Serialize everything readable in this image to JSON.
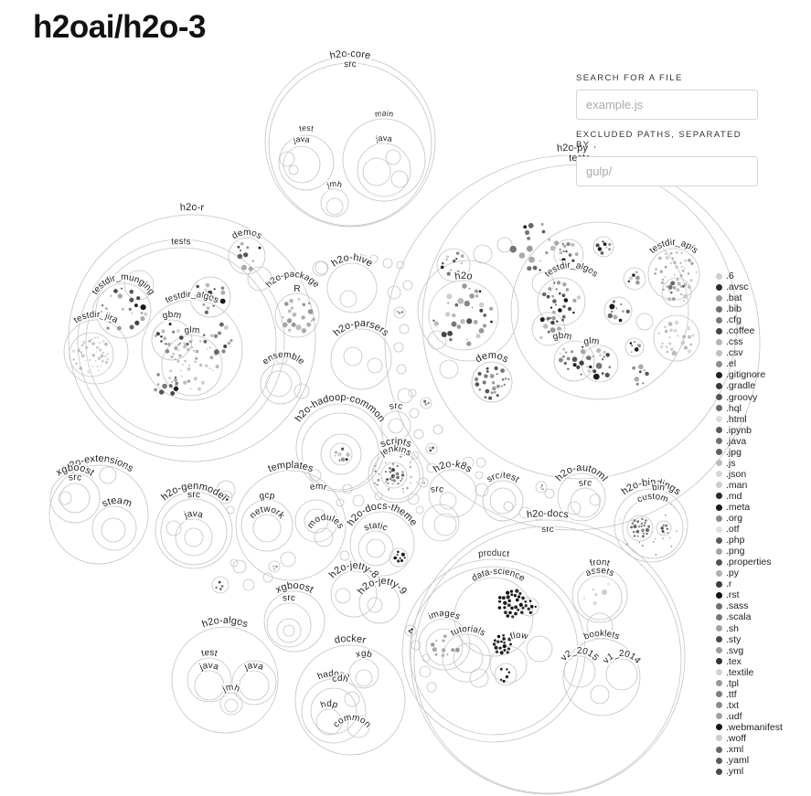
{
  "repo_title": "h2oai/h2o-3",
  "search": {
    "label": "SEARCH FOR A FILE",
    "placeholder": "example.js"
  },
  "excluded": {
    "label": "EXCLUDED PATHS, SEPARATED BY ,",
    "placeholder": "gulp/"
  },
  "folders": [
    "h2o-core",
    "src",
    "test",
    "java",
    "main",
    "java",
    "jmh",
    "h2o-py",
    "tests",
    "testdir_apis",
    "testdir_algos",
    "h2o",
    "demos",
    "gbm",
    "glm",
    "h2o-r",
    "tests",
    "demos",
    "testdir_munging",
    "testdir_algos",
    "testdir_jira",
    "gbm",
    "glm",
    "h2o-package",
    "R",
    "ensemble",
    "h2o-hive",
    "h2o-parsers",
    "h2o-hadoop-common",
    "src",
    "h2o-extensions",
    "xgboost",
    "src",
    "steam",
    "h2o-genmodel",
    "src",
    "java",
    "templates",
    "gcp",
    "network",
    "emr",
    "modules",
    "scripts",
    "jenkins",
    "h2o-k8s",
    "src/test",
    "src",
    "h2o-docs-theme",
    "static",
    "h2o-automl",
    "src",
    "h2o-bindings",
    "bin",
    "custom",
    "h2o-jetty-8",
    "h2o-jetty-9",
    "xgboost",
    "src",
    "h2o-algos",
    "test",
    "java",
    "java",
    "jmh",
    "docker",
    "xgb",
    "hadoop",
    "cdh",
    "hdp",
    "common",
    "h2o-docs",
    "src",
    "product",
    "data-science",
    "images",
    "tutorials",
    "flow",
    "front",
    "assets",
    "booklets",
    "v2_2015",
    "v1_2014"
  ],
  "legend": [
    {
      "ext": ".6",
      "color": "#cfcfcf"
    },
    {
      "ext": ".avsc",
      "color": "#2d2d2d"
    },
    {
      "ext": ".bat",
      "color": "#9a9a9a"
    },
    {
      "ext": ".bib",
      "color": "#6e6e6e"
    },
    {
      "ext": ".cfg",
      "color": "#7a7a7a"
    },
    {
      "ext": ".coffee",
      "color": "#454545"
    },
    {
      "ext": ".css",
      "color": "#b5b5b5"
    },
    {
      "ext": ".csv",
      "color": "#c0c0c0"
    },
    {
      "ext": ".el",
      "color": "#8c8c8c"
    },
    {
      "ext": ".gitignore",
      "color": "#1f1f1f"
    },
    {
      "ext": ".gradle",
      "color": "#3a3a3a"
    },
    {
      "ext": ".groovy",
      "color": "#565656"
    },
    {
      "ext": ".hql",
      "color": "#6a6a6a"
    },
    {
      "ext": ".html",
      "color": "#dedede"
    },
    {
      "ext": ".ipynb",
      "color": "#5a5a5a"
    },
    {
      "ext": ".java",
      "color": "#707070"
    },
    {
      "ext": ".jpg",
      "color": "#5f5f5f"
    },
    {
      "ext": ".js",
      "color": "#bdbdbd"
    },
    {
      "ext": ".json",
      "color": "#d6d6d6"
    },
    {
      "ext": ".man",
      "color": "#cccccc"
    },
    {
      "ext": ".md",
      "color": "#2a2a2a"
    },
    {
      "ext": ".meta",
      "color": "#1a1a1a"
    },
    {
      "ext": ".org",
      "color": "#8a8a8a"
    },
    {
      "ext": ".otf",
      "color": "#e0e0e0"
    },
    {
      "ext": ".php",
      "color": "#5a5a5a"
    },
    {
      "ext": ".png",
      "color": "#a5a5a5"
    },
    {
      "ext": ".properties",
      "color": "#555555"
    },
    {
      "ext": ".py",
      "color": "#b0b0b0"
    },
    {
      "ext": ".r",
      "color": "#3d3d3d"
    },
    {
      "ext": ".rst",
      "color": "#111111"
    },
    {
      "ext": ".sass",
      "color": "#6f6f6f"
    },
    {
      "ext": ".scala",
      "color": "#777777"
    },
    {
      "ext": ".sh",
      "color": "#a2a2a2"
    },
    {
      "ext": ".sty",
      "color": "#4a4a4a"
    },
    {
      "ext": ".svg",
      "color": "#9d9d9d"
    },
    {
      "ext": ".tex",
      "color": "#333333"
    },
    {
      "ext": ".textile",
      "color": "#d3d3d3"
    },
    {
      "ext": ".tpl",
      "color": "#9a9a9a"
    },
    {
      "ext": ".ttf",
      "color": "#7d7d7d"
    },
    {
      "ext": ".txt",
      "color": "#8a8a8a"
    },
    {
      "ext": ".udf",
      "color": "#a0a0a0"
    },
    {
      "ext": ".webmanifest",
      "color": "#151515"
    },
    {
      "ext": ".woff",
      "color": "#cccccc"
    },
    {
      "ext": ".xml",
      "color": "#686868"
    },
    {
      "ext": ".yaml",
      "color": "#5c5c5c"
    },
    {
      "ext": ".yml",
      "color": "#4a4a4a"
    }
  ]
}
